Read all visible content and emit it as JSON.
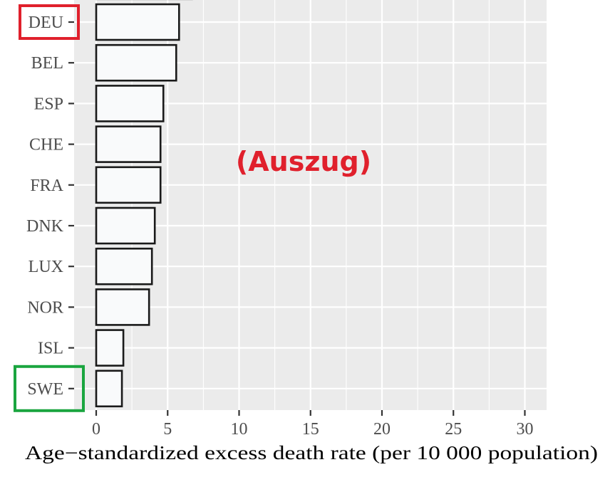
{
  "chart_data": {
    "type": "bar",
    "orientation": "horizontal",
    "categories": [
      "DEU",
      "BEL",
      "ESP",
      "CHE",
      "FRA",
      "DNK",
      "LUX",
      "NOR",
      "ISL",
      "SWE"
    ],
    "values": [
      5.8,
      5.6,
      4.7,
      4.5,
      4.5,
      4.1,
      3.9,
      3.7,
      1.9,
      1.8
    ],
    "partial_bar_above_value": 6.7,
    "xlabel": "Age−standardized excess death rate (per 10 000 population)",
    "ylabel": "",
    "xlim": [
      0,
      31.5
    ],
    "xticks": [
      "0",
      "5",
      "10",
      "15",
      "20",
      "25",
      "30"
    ],
    "grid": true,
    "legend": "none",
    "annotation": "(Auszug)",
    "highlighted": [
      {
        "category": "DEU",
        "color": "#e0202c"
      },
      {
        "category": "SWE",
        "color": "#1aa53f"
      }
    ]
  },
  "colors": {
    "panel_bg": "#ebebeb",
    "grid": "#ffffff",
    "bar_fill": "#f9fafb",
    "bar_stroke": "#1a1a1a",
    "annotation": "#e0202c",
    "tick_text": "#4d4d4d"
  }
}
